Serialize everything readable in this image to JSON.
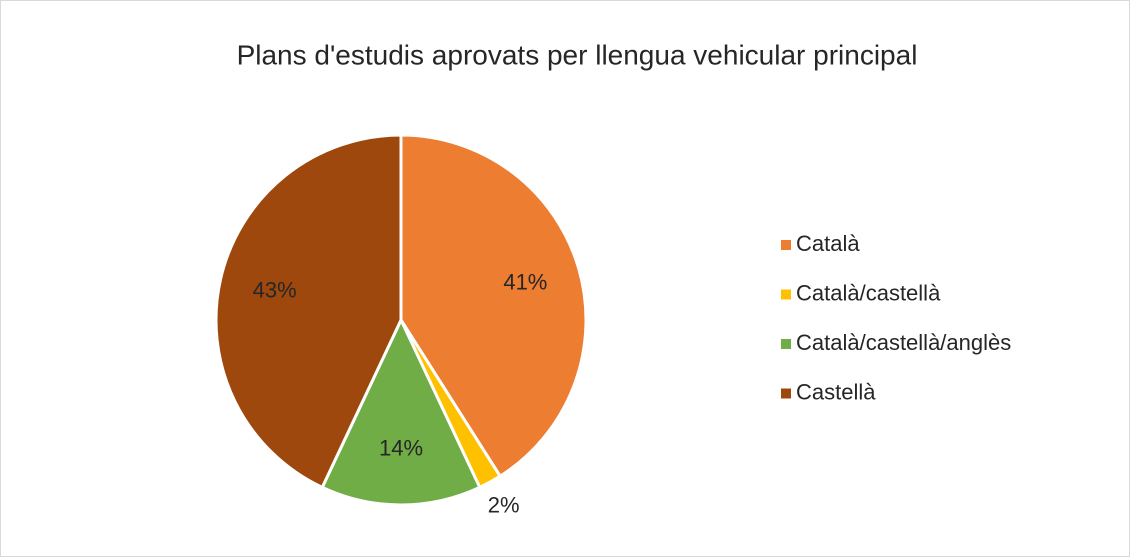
{
  "chart_data": {
    "type": "pie",
    "title": "Plans d'estudis aprovats per llengua vehicular principal",
    "categories": [
      "Català",
      "Català/castellà",
      "Català/castellà/anglès",
      "Castellà"
    ],
    "values": [
      41,
      2,
      14,
      43
    ],
    "value_labels": [
      "41%",
      "2%",
      "14%",
      "43%"
    ],
    "colors": [
      "#ed7d31",
      "#ffc000",
      "#70ad47",
      "#9e480e"
    ],
    "legend": "right"
  }
}
